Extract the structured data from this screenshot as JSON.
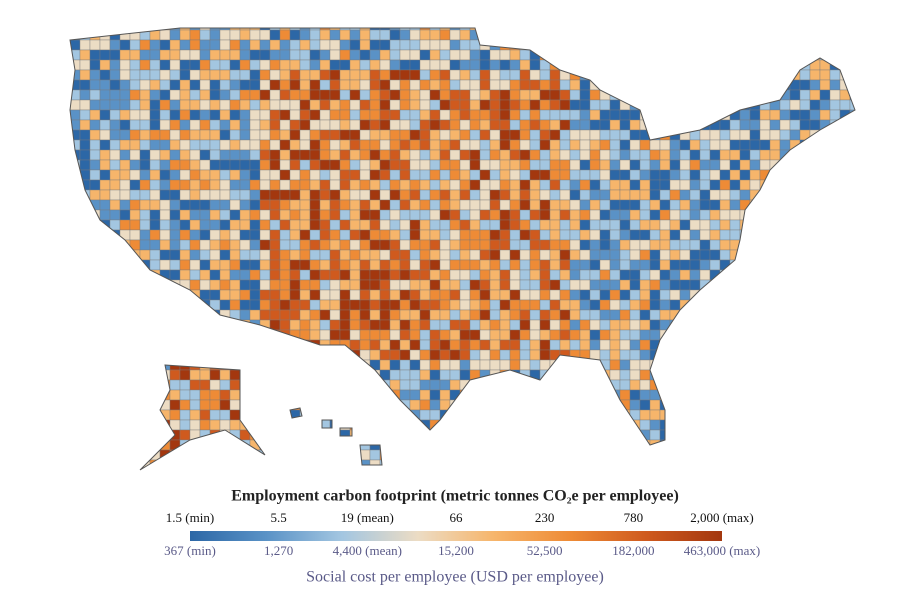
{
  "legend": {
    "title": "Employment carbon footprint (metric tonnes CO₂e per employee)",
    "top_labels": [
      "1.5 (min)",
      "5.5",
      "19 (mean)",
      "66",
      "230",
      "780",
      "2,000 (max)"
    ],
    "bottom_labels": [
      "367 (min)",
      "1,270",
      "4,400 (mean)",
      "15,200",
      "52,500",
      "182,000",
      "463,000 (max)"
    ],
    "subtitle": "Social cost per employee (USD per employee)",
    "colors": [
      "#2c67a6",
      "#5a92c6",
      "#a3c6e1",
      "#ecdcc4",
      "#f6b56b",
      "#ee8b36",
      "#cf5a1e",
      "#a3370f"
    ]
  }
}
